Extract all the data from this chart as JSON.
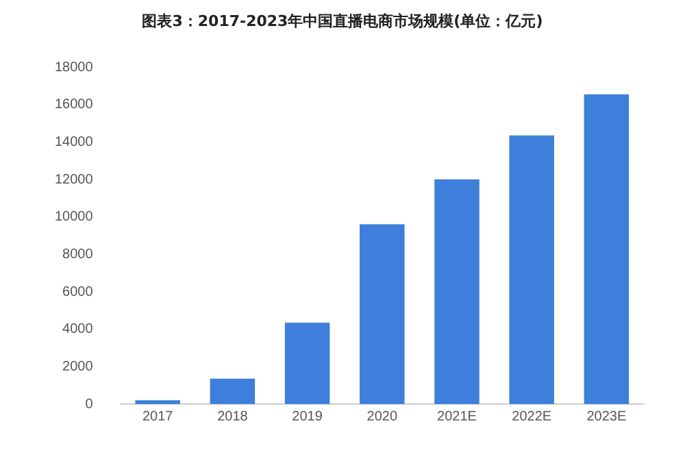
{
  "chart_data": {
    "type": "bar",
    "title": "图表3：2017-2023年中国直播电商市场规模(单位：亿元)",
    "categories": [
      "2017",
      "2018",
      "2019",
      "2020",
      "2021E",
      "2022E",
      "2023E"
    ],
    "values": [
      200,
      1350,
      4340,
      9600,
      12000,
      14350,
      16550
    ],
    "color": "#3d7fdb",
    "ylim": [
      0,
      18000
    ],
    "yticks": [
      0,
      2000,
      4000,
      6000,
      8000,
      10000,
      12000,
      14000,
      16000,
      18000
    ],
    "grid": false,
    "legend": false
  }
}
